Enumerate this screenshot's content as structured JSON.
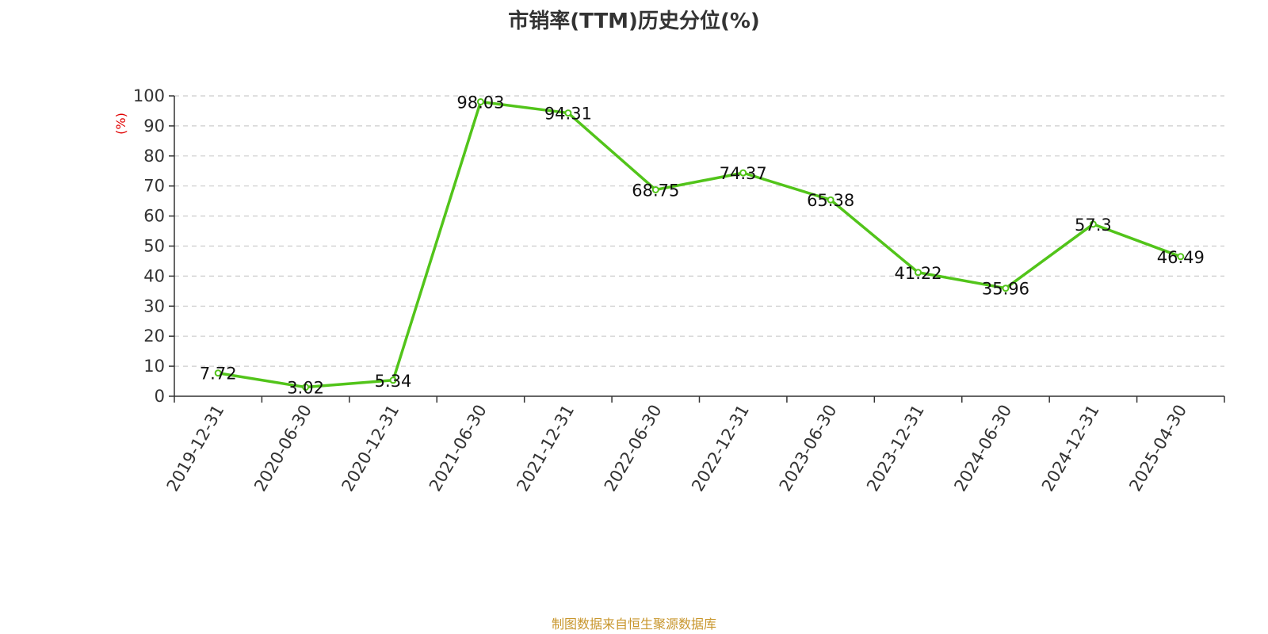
{
  "chart_data": {
    "type": "line",
    "title": "市销率(TTM)历史分位(%)",
    "ylabel": "(%)",
    "xlabel": "",
    "categories": [
      "2019-12-31",
      "2020-06-30",
      "2020-12-31",
      "2021-06-30",
      "2021-12-31",
      "2022-06-30",
      "2022-12-31",
      "2023-06-30",
      "2023-12-31",
      "2024-06-30",
      "2024-12-31",
      "2025-04-30"
    ],
    "series": [
      {
        "values": [
          7.72,
          3.02,
          5.34,
          98.03,
          94.31,
          68.75,
          74.37,
          65.38,
          41.22,
          35.96,
          57.3,
          46.49
        ],
        "labels": [
          "7.72",
          "3.02",
          "5.34",
          "98.03",
          "94.31",
          "68.75",
          "74.37",
          "65.38",
          "41.22",
          "35.96",
          "57.3",
          "46.49"
        ]
      }
    ],
    "ylim": [
      0,
      100
    ],
    "yticks": [
      "0",
      "10",
      "20",
      "30",
      "40",
      "50",
      "60",
      "70",
      "80",
      "90",
      "100"
    ],
    "grid": true,
    "colors": {
      "line": "#52c41a",
      "grid": "#cccccc",
      "axis": "#333333",
      "ylabel": "#e00000"
    }
  },
  "footer": {
    "source": "制图数据来自恒生聚源数据库"
  }
}
